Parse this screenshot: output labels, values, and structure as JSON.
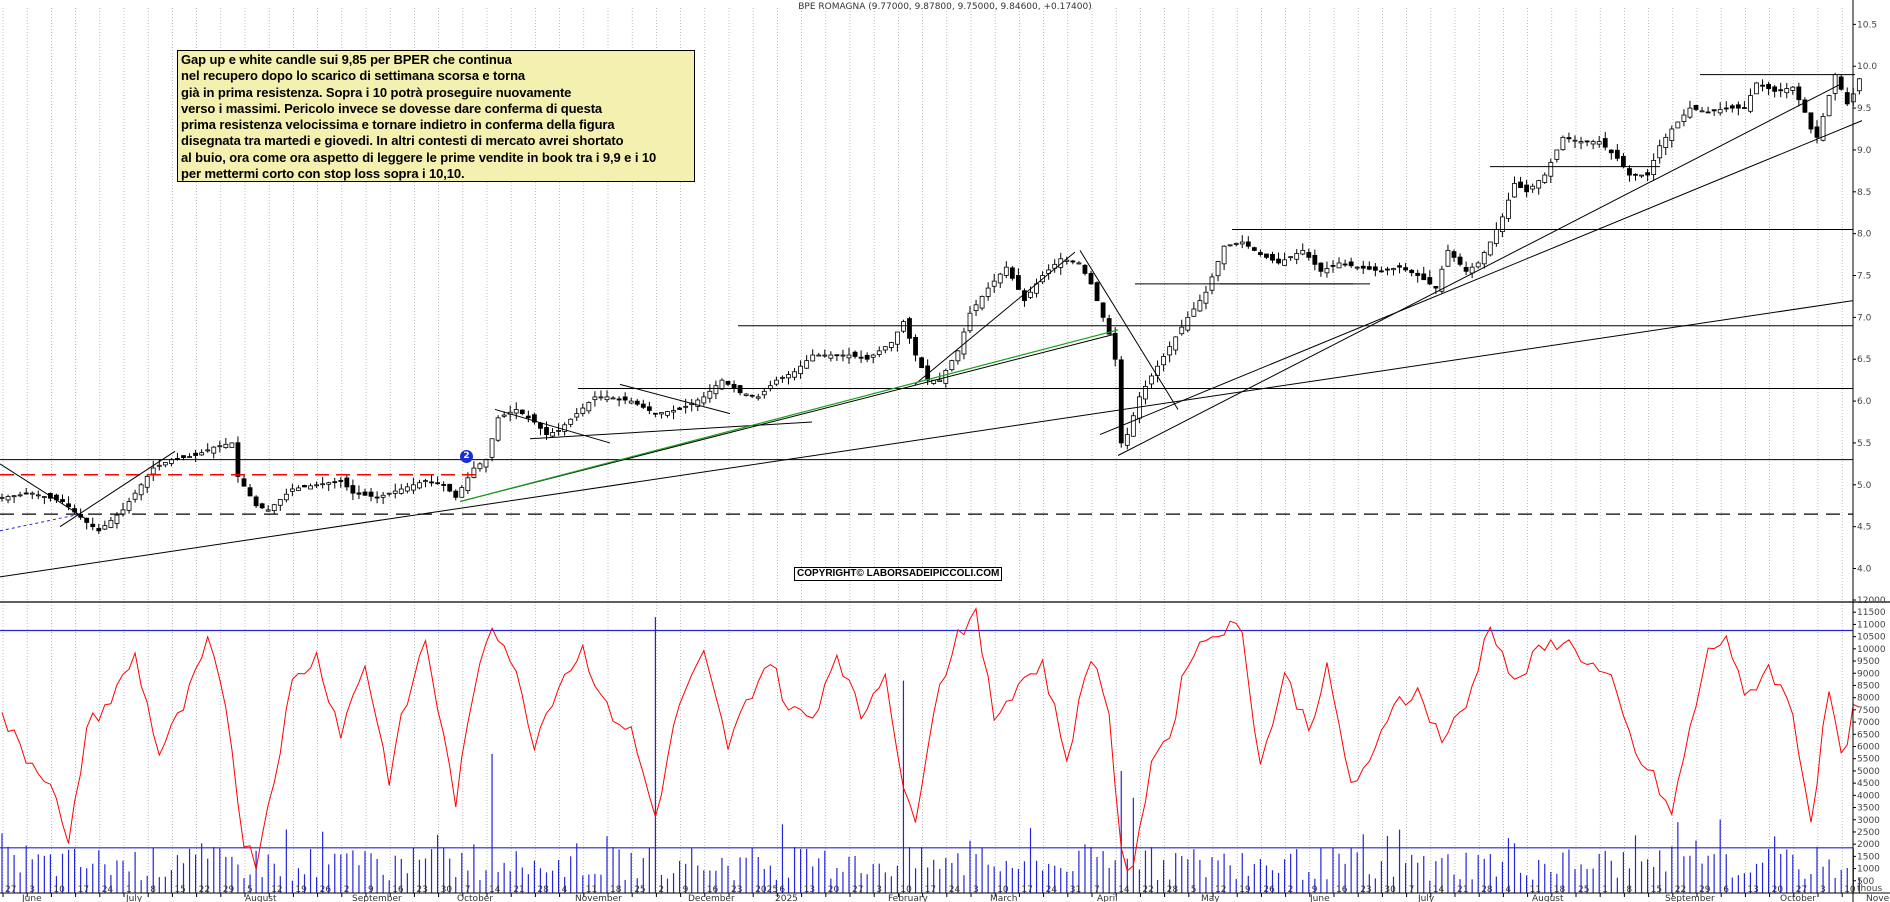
{
  "title": "BPE ROMAGNA (9.77000, 9.87800, 9.75000, 9.84600, +0.17400)",
  "comment_lines": [
    "Gap up e white candle sui 9,85 per BPER che continua",
    "nel recupero dopo lo scarico di settimana scorsa e torna",
    "già in prima resistenza. Sopra i 10 potrà proseguire nuovamente",
    "verso i massimi. Pericolo invece se dovesse dare conferma di questa",
    "prima resistenza velocissima e tornare indietro in conferma della figura",
    "disegnata tra martedi e giovedi. In altri contesti di mercato avrei shortato",
    "al buio, ora come ora aspetto di leggere le prime vendite in book tra i 9,9 e i 10",
    "per mettermi corto con stop loss sopra i 10,10."
  ],
  "copyright": "COPYRIGHT© LABORSADEIPICCOLI.COM",
  "marker_label": "2",
  "volume_unit_label": "thous",
  "colors": {
    "candle": "#000000",
    "volume_bars": "#2525d8",
    "volume_line": "#ff0000",
    "trend_line_green": "#1aa01a",
    "support_dashed_red": "#ff0000",
    "support_dashed_blue": "#2525d8",
    "comment_bg": "#f4f0b0"
  },
  "chart_data": [
    {
      "type": "candlestick",
      "title": "BPE ROMAGNA (9.77000, 9.87800, 9.75000, 9.84600, +0.17400)",
      "ylim": [
        3.6,
        10.6
      ],
      "y_ticks": [
        "4.0",
        "4.5",
        "5.0",
        "5.5",
        "6.0",
        "6.5",
        "7.0",
        "7.5",
        "8.0",
        "8.5",
        "9.0",
        "9.5",
        "10.0",
        "10.5"
      ],
      "last": {
        "open": 9.77,
        "high": 9.878,
        "low": 9.75,
        "close": 9.846,
        "change": 0.174
      },
      "x_tick_labels": [
        "27",
        "3",
        "10",
        "17",
        "24",
        "1",
        "8",
        "15",
        "22",
        "29",
        "5",
        "12",
        "19",
        "26",
        "2",
        "9",
        "16",
        "23",
        "30",
        "7",
        "14",
        "21",
        "28",
        "4",
        "11",
        "18",
        "25",
        "2",
        "9",
        "16",
        "23",
        "2025",
        "6",
        "13",
        "20",
        "27",
        "3",
        "10",
        "17",
        "24",
        "3",
        "10",
        "17",
        "24",
        "31",
        "7",
        "14",
        "22",
        "28",
        "5",
        "12",
        "19",
        "26",
        "2",
        "9",
        "16",
        "23",
        "30",
        "7",
        "14",
        "21",
        "28",
        "4",
        "11",
        "18",
        "25",
        "1",
        "8",
        "15",
        "22",
        "29",
        "6",
        "13",
        "20",
        "27",
        "3",
        "10"
      ],
      "month_labels": [
        "June",
        "July",
        "August",
        "September",
        "October",
        "November",
        "December",
        "2025",
        "February",
        "March",
        "April",
        "May",
        "June",
        "July",
        "August",
        "September",
        "October",
        "Novemb"
      ],
      "close_path": [
        [
          0,
          4.85
        ],
        [
          5,
          4.9
        ],
        [
          10,
          4.8
        ],
        [
          14,
          4.55
        ],
        [
          16,
          4.45
        ],
        [
          20,
          4.7
        ],
        [
          25,
          5.2
        ],
        [
          28,
          5.3
        ],
        [
          32,
          5.35
        ],
        [
          35,
          5.45
        ],
        [
          38,
          5.5
        ],
        [
          39,
          5.1
        ],
        [
          42,
          4.75
        ],
        [
          44,
          4.7
        ],
        [
          48,
          4.95
        ],
        [
          52,
          5.0
        ],
        [
          56,
          5.05
        ],
        [
          58,
          4.9
        ],
        [
          62,
          4.85
        ],
        [
          66,
          4.95
        ],
        [
          70,
          5.05
        ],
        [
          73,
          5.0
        ],
        [
          75,
          4.85
        ],
        [
          78,
          5.2
        ],
        [
          80,
          5.3
        ],
        [
          82,
          5.8
        ],
        [
          85,
          5.9
        ],
        [
          88,
          5.75
        ],
        [
          90,
          5.6
        ],
        [
          92,
          5.65
        ],
        [
          95,
          5.85
        ],
        [
          98,
          6.05
        ],
        [
          100,
          6.05
        ],
        [
          104,
          6.0
        ],
        [
          108,
          5.85
        ],
        [
          112,
          5.9
        ],
        [
          116,
          6.05
        ],
        [
          119,
          6.25
        ],
        [
          122,
          6.1
        ],
        [
          125,
          6.05
        ],
        [
          128,
          6.25
        ],
        [
          131,
          6.35
        ],
        [
          134,
          6.55
        ],
        [
          137,
          6.55
        ],
        [
          140,
          6.55
        ],
        [
          143,
          6.5
        ],
        [
          147,
          6.7
        ],
        [
          149,
          6.95
        ],
        [
          151,
          6.55
        ],
        [
          153,
          6.25
        ],
        [
          155,
          6.25
        ],
        [
          158,
          6.6
        ],
        [
          160,
          7.05
        ],
        [
          163,
          7.35
        ],
        [
          166,
          7.6
        ],
        [
          169,
          7.2
        ],
        [
          172,
          7.5
        ],
        [
          175,
          7.7
        ],
        [
          178,
          7.65
        ],
        [
          180,
          7.4
        ],
        [
          183,
          6.8
        ],
        [
          184,
          6.5
        ],
        [
          185,
          5.5
        ],
        [
          186,
          5.6
        ],
        [
          188,
          6.05
        ],
        [
          190,
          6.3
        ],
        [
          193,
          6.65
        ],
        [
          196,
          7.0
        ],
        [
          199,
          7.3
        ],
        [
          202,
          7.85
        ],
        [
          205,
          7.9
        ],
        [
          208,
          7.75
        ],
        [
          211,
          7.65
        ],
        [
          215,
          7.8
        ],
        [
          218,
          7.55
        ],
        [
          221,
          7.65
        ],
        [
          224,
          7.6
        ],
        [
          228,
          7.55
        ],
        [
          231,
          7.6
        ],
        [
          234,
          7.5
        ],
        [
          237,
          7.35
        ],
        [
          239,
          7.8
        ],
        [
          242,
          7.55
        ],
        [
          244,
          7.65
        ],
        [
          246,
          7.9
        ],
        [
          248,
          8.2
        ],
        [
          250,
          8.6
        ],
        [
          252,
          8.5
        ],
        [
          255,
          8.7
        ],
        [
          258,
          9.15
        ],
        [
          261,
          9.1
        ],
        [
          264,
          9.1
        ],
        [
          267,
          8.9
        ],
        [
          269,
          8.7
        ],
        [
          272,
          8.7
        ],
        [
          274,
          9.05
        ],
        [
          276,
          9.25
        ],
        [
          279,
          9.5
        ],
        [
          282,
          9.45
        ],
        [
          285,
          9.5
        ],
        [
          288,
          9.5
        ],
        [
          290,
          9.8
        ],
        [
          293,
          9.7
        ],
        [
          296,
          9.75
        ],
        [
          298,
          9.45
        ],
        [
          299,
          9.25
        ],
        [
          300,
          9.15
        ],
        [
          302,
          9.65
        ],
        [
          303,
          9.9
        ],
        [
          305,
          9.55
        ],
        [
          306,
          9.67
        ],
        [
          307,
          9.85
        ]
      ],
      "horizontal_levels": [
        4.65,
        5.3,
        6.15,
        6.9,
        8.05
      ],
      "dashed_support": 4.65,
      "red_dashed_level": 5.12
    },
    {
      "type": "bar",
      "title": "",
      "ylim": [
        0,
        12000
      ],
      "y_ticks": [
        "500",
        "1000",
        "1500",
        "2000",
        "2500",
        "3000",
        "3500",
        "4000",
        "4500",
        "5000",
        "5500",
        "6000",
        "6500",
        "7000",
        "7500",
        "8000",
        "8500",
        "9000",
        "9500",
        "10000",
        "10500",
        "11000",
        "11500",
        "12000"
      ],
      "reference_levels": [
        1850,
        10750
      ],
      "volume_line_path": [
        [
          0,
          7200
        ],
        [
          4,
          5600
        ],
        [
          8,
          4600
        ],
        [
          11,
          1800
        ],
        [
          14,
          6800
        ],
        [
          18,
          7900
        ],
        [
          22,
          9700
        ],
        [
          26,
          5700
        ],
        [
          30,
          7600
        ],
        [
          34,
          10200
        ],
        [
          37,
          7800
        ],
        [
          40,
          2100
        ],
        [
          42,
          1300
        ],
        [
          45,
          4800
        ],
        [
          48,
          8600
        ],
        [
          52,
          9700
        ],
        [
          56,
          6600
        ],
        [
          60,
          9400
        ],
        [
          64,
          4700
        ],
        [
          66,
          7000
        ],
        [
          70,
          10400
        ],
        [
          73,
          6300
        ],
        [
          75,
          3800
        ],
        [
          79,
          9600
        ],
        [
          81,
          11100
        ],
        [
          84,
          9700
        ],
        [
          88,
          6200
        ],
        [
          92,
          8600
        ],
        [
          96,
          10000
        ],
        [
          100,
          7500
        ],
        [
          104,
          6600
        ],
        [
          108,
          3100
        ],
        [
          112,
          7800
        ],
        [
          116,
          9700
        ],
        [
          120,
          6000
        ],
        [
          124,
          8300
        ],
        [
          127,
          9600
        ],
        [
          130,
          7500
        ],
        [
          134,
          7200
        ],
        [
          138,
          9900
        ],
        [
          142,
          7200
        ],
        [
          146,
          9200
        ],
        [
          149,
          4000
        ],
        [
          151,
          3200
        ],
        [
          154,
          7600
        ],
        [
          158,
          10700
        ],
        [
          161,
          11300
        ],
        [
          164,
          7200
        ],
        [
          168,
          8600
        ],
        [
          172,
          9400
        ],
        [
          176,
          5500
        ],
        [
          180,
          9800
        ],
        [
          183,
          7500
        ],
        [
          185,
          1500
        ],
        [
          187,
          800
        ],
        [
          190,
          5600
        ],
        [
          193,
          6400
        ],
        [
          196,
          9600
        ],
        [
          199,
          10400
        ],
        [
          202,
          10900
        ],
        [
          205,
          10800
        ],
        [
          208,
          5200
        ],
        [
          212,
          8900
        ],
        [
          216,
          6800
        ],
        [
          219,
          9100
        ],
        [
          223,
          4500
        ],
        [
          226,
          5100
        ],
        [
          230,
          7900
        ],
        [
          234,
          8200
        ],
        [
          238,
          6300
        ],
        [
          242,
          7600
        ],
        [
          246,
          11100
        ],
        [
          250,
          8500
        ],
        [
          254,
          9900
        ],
        [
          258,
          10400
        ],
        [
          262,
          9500
        ],
        [
          266,
          8600
        ],
        [
          270,
          5700
        ],
        [
          273,
          4700
        ],
        [
          276,
          3200
        ],
        [
          279,
          6700
        ],
        [
          282,
          9800
        ],
        [
          285,
          10600
        ],
        [
          288,
          7900
        ],
        [
          292,
          9300
        ],
        [
          296,
          7400
        ],
        [
          299,
          3000
        ],
        [
          302,
          8300
        ],
        [
          304,
          5400
        ],
        [
          306,
          7400
        ]
      ],
      "spikes": [
        {
          "x": 108,
          "value": 11300
        },
        {
          "x": 149,
          "value": 8700
        },
        {
          "x": 81,
          "value": 5700
        },
        {
          "x": 185,
          "value": 5000
        },
        {
          "x": 187,
          "value": 3900
        }
      ]
    }
  ]
}
